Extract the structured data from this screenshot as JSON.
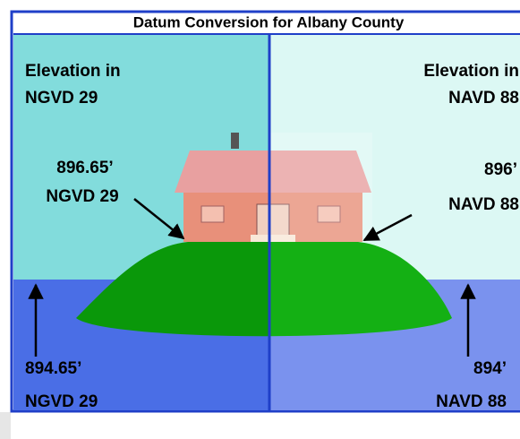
{
  "title": "Datum Conversion for Albany County",
  "left": {
    "heading": [
      "Elevation in",
      "NGVD 29"
    ],
    "upper": [
      "896.65’",
      "NGVD 29"
    ],
    "lower": [
      "894.65’",
      "NGVD 29"
    ]
  },
  "right": {
    "heading": [
      "Elevation in",
      "NAVD 88"
    ],
    "upper": [
      "896’",
      "NAVD 88"
    ],
    "lower": [
      "894’",
      "NAVD 88"
    ]
  }
}
